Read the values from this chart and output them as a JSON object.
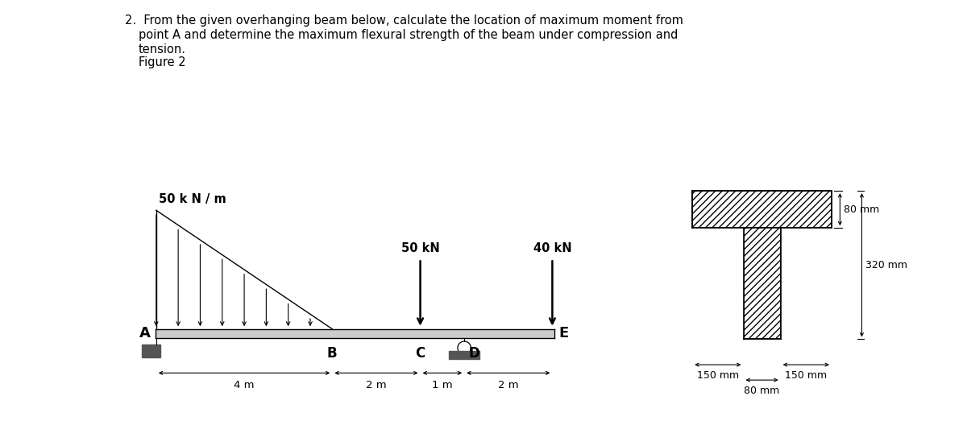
{
  "background": "#ffffff",
  "dist_load_label": "50 k N / m",
  "point_load1_label": "50 kN",
  "point_load2_label": "40 kN",
  "dim_4m": "4 m",
  "dim_2m_BC": "2 m",
  "dim_1m_CD": "1 m",
  "dim_2m_DE": "2 m",
  "label_A": "A",
  "label_B": "B",
  "label_C": "C",
  "label_D": "D",
  "label_E": "E",
  "cs_label_80mm_top": "80 mm",
  "cs_label_320mm": "320 mm",
  "cs_label_150mm_left": "150 mm",
  "cs_label_150mm_right": "150 mm",
  "cs_label_80mm_bot": "80 mm"
}
